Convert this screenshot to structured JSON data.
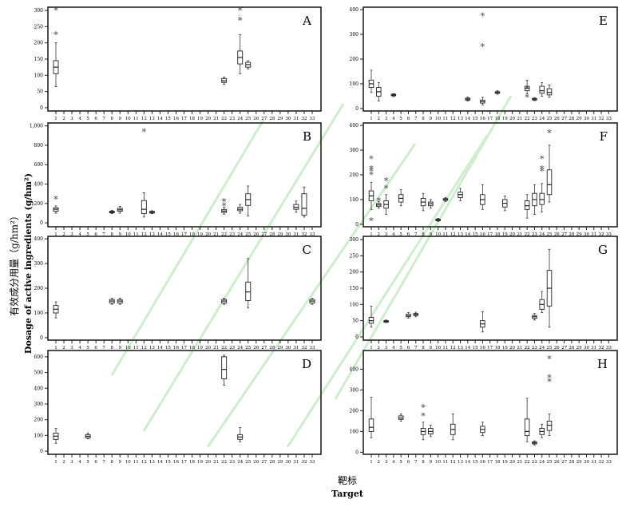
{
  "figure": {
    "ylabel_cn": "有效成分用量（g/hm²）",
    "ylabel_en": "Dosage of active ingredients (g/hm²)",
    "xlabel_cn": "靶标",
    "xlabel_en": "Target",
    "xticks": [
      "1",
      "2",
      "3",
      "4",
      "5",
      "6",
      "7",
      "8",
      "9",
      "10",
      "11",
      "12",
      "13",
      "14",
      "15",
      "16",
      "17",
      "18",
      "19",
      "20",
      "21",
      "22",
      "23",
      "24",
      "25",
      "26",
      "27",
      "28",
      "29",
      "30",
      "31",
      "32",
      "33"
    ]
  },
  "chart_data": [
    {
      "type": "box",
      "title": "A",
      "ylim": [
        -10,
        310
      ],
      "yticks": [
        "0",
        "50",
        "100",
        "150",
        "200",
        "250",
        "300"
      ],
      "yvals": [
        0,
        50,
        100,
        150,
        200,
        250,
        300
      ],
      "boxes": [
        {
          "x": 1,
          "min": 65,
          "q1": 105,
          "med": 125,
          "q3": 145,
          "max": 200
        },
        {
          "x": 22,
          "min": 72,
          "q1": 78,
          "med": 83,
          "q3": 90,
          "max": 95
        },
        {
          "x": 24,
          "min": 105,
          "q1": 135,
          "med": 155,
          "q3": 175,
          "max": 225
        },
        {
          "x": 25,
          "min": 120,
          "q1": 125,
          "med": 133,
          "q3": 140,
          "max": 145
        }
      ],
      "outliers": [
        {
          "x": 1,
          "y": 300
        },
        {
          "x": 1,
          "y": 225
        },
        {
          "x": 24,
          "y": 300
        },
        {
          "x": 24,
          "y": 270
        }
      ]
    },
    {
      "type": "box",
      "title": "E",
      "ylim": [
        -10,
        410
      ],
      "yticks": [
        "0",
        "100",
        "200",
        "300",
        "400"
      ],
      "yvals": [
        0,
        100,
        200,
        300,
        400
      ],
      "boxes": [
        {
          "x": 1,
          "min": 65,
          "q1": 85,
          "med": 100,
          "q3": 115,
          "max": 155
        },
        {
          "x": 2,
          "min": 30,
          "q1": 50,
          "med": 68,
          "q3": 85,
          "max": 105
        },
        {
          "x": 4,
          "min": 48,
          "q1": 52,
          "med": 55,
          "q3": 58,
          "max": 60
        },
        {
          "x": 14,
          "min": 30,
          "q1": 34,
          "med": 38,
          "q3": 42,
          "max": 46
        },
        {
          "x": 16,
          "min": 15,
          "q1": 22,
          "med": 28,
          "q3": 34,
          "max": 45
        },
        {
          "x": 18,
          "min": 58,
          "q1": 62,
          "med": 65,
          "q3": 68,
          "max": 72
        },
        {
          "x": 22,
          "min": 60,
          "q1": 72,
          "med": 82,
          "q3": 90,
          "max": 115
        },
        {
          "x": 23,
          "min": 32,
          "q1": 35,
          "med": 38,
          "q3": 41,
          "max": 44
        },
        {
          "x": 24,
          "min": 50,
          "q1": 62,
          "med": 72,
          "q3": 90,
          "max": 105
        },
        {
          "x": 25,
          "min": 45,
          "q1": 55,
          "med": 65,
          "q3": 80,
          "max": 95
        }
      ],
      "outliers": [
        {
          "x": 16,
          "y": 375
        },
        {
          "x": 16,
          "y": 250
        },
        {
          "x": 22,
          "y": 45
        },
        {
          "x": 22,
          "y": 80
        }
      ]
    },
    {
      "type": "box",
      "title": "B",
      "ylim": [
        -40,
        1030
      ],
      "yticks": [
        "0",
        "200",
        "400",
        "600",
        "800",
        "1,000"
      ],
      "yvals": [
        0,
        200,
        400,
        600,
        800,
        1000
      ],
      "boxes": [
        {
          "x": 1,
          "min": 100,
          "q1": 120,
          "med": 140,
          "q3": 155,
          "max": 175
        },
        {
          "x": 8,
          "min": 95,
          "q1": 105,
          "med": 112,
          "q3": 120,
          "max": 128
        },
        {
          "x": 9,
          "min": 100,
          "q1": 120,
          "med": 135,
          "q3": 150,
          "max": 170
        },
        {
          "x": 12,
          "min": 60,
          "q1": 95,
          "med": 140,
          "q3": 230,
          "max": 310
        },
        {
          "x": 13,
          "min": 95,
          "q1": 102,
          "med": 110,
          "q3": 118,
          "max": 125
        },
        {
          "x": 22,
          "min": 90,
          "q1": 108,
          "med": 122,
          "q3": 138,
          "max": 160
        },
        {
          "x": 24,
          "min": 100,
          "q1": 125,
          "med": 140,
          "q3": 160,
          "max": 190
        },
        {
          "x": 25,
          "min": 70,
          "q1": 180,
          "med": 240,
          "q3": 300,
          "max": 380
        },
        {
          "x": 31,
          "min": 110,
          "q1": 140,
          "med": 160,
          "q3": 190,
          "max": 225
        },
        {
          "x": 32,
          "min": 60,
          "q1": 80,
          "med": 150,
          "q3": 300,
          "max": 370
        }
      ],
      "outliers": [
        {
          "x": 1,
          "y": 245
        },
        {
          "x": 12,
          "y": 940
        },
        {
          "x": 22,
          "y": 220
        },
        {
          "x": 22,
          "y": 175
        }
      ]
    },
    {
      "type": "box",
      "title": "F",
      "ylim": [
        -10,
        410
      ],
      "yticks": [
        "0",
        "100",
        "200",
        "300",
        "400"
      ],
      "yvals": [
        0,
        100,
        200,
        300,
        400
      ],
      "boxes": [
        {
          "x": 1,
          "min": 60,
          "q1": 95,
          "med": 115,
          "q3": 135,
          "max": 170
        },
        {
          "x": 2,
          "min": 65,
          "q1": 72,
          "med": 78,
          "q3": 84,
          "max": 92
        },
        {
          "x": 3,
          "min": 40,
          "q1": 65,
          "med": 80,
          "q3": 95,
          "max": 120
        },
        {
          "x": 5,
          "min": 75,
          "q1": 90,
          "med": 105,
          "q3": 120,
          "max": 140
        },
        {
          "x": 8,
          "min": 55,
          "q1": 75,
          "med": 90,
          "q3": 105,
          "max": 125
        },
        {
          "x": 9,
          "min": 65,
          "q1": 75,
          "med": 83,
          "q3": 90,
          "max": 100
        },
        {
          "x": 10,
          "min": 12,
          "q1": 15,
          "med": 18,
          "q3": 21,
          "max": 24
        },
        {
          "x": 11,
          "min": 92,
          "q1": 97,
          "med": 100,
          "q3": 104,
          "max": 108
        },
        {
          "x": 13,
          "min": 95,
          "q1": 108,
          "med": 120,
          "q3": 130,
          "max": 145
        },
        {
          "x": 16,
          "min": 60,
          "q1": 80,
          "med": 100,
          "q3": 120,
          "max": 160
        },
        {
          "x": 19,
          "min": 55,
          "q1": 70,
          "med": 85,
          "q3": 100,
          "max": 115
        },
        {
          "x": 22,
          "min": 25,
          "q1": 60,
          "med": 75,
          "q3": 95,
          "max": 120
        },
        {
          "x": 23,
          "min": 40,
          "q1": 75,
          "med": 100,
          "q3": 125,
          "max": 160
        },
        {
          "x": 24,
          "min": 50,
          "q1": 80,
          "med": 100,
          "q3": 125,
          "max": 165
        },
        {
          "x": 25,
          "min": 90,
          "q1": 120,
          "med": 160,
          "q3": 220,
          "max": 320
        }
      ],
      "outliers": [
        {
          "x": 1,
          "y": 265
        },
        {
          "x": 1,
          "y": 225
        },
        {
          "x": 1,
          "y": 215
        },
        {
          "x": 1,
          "y": 200
        },
        {
          "x": 1,
          "y": 15
        },
        {
          "x": 2,
          "y": 95
        },
        {
          "x": 3,
          "y": 175
        },
        {
          "x": 3,
          "y": 145
        },
        {
          "x": 24,
          "y": 265
        },
        {
          "x": 24,
          "y": 225
        },
        {
          "x": 24,
          "y": 215
        },
        {
          "x": 25,
          "y": 370
        }
      ]
    },
    {
      "type": "box",
      "title": "C",
      "ylim": [
        -10,
        410
      ],
      "yticks": [
        "0",
        "100",
        "200",
        "300",
        "400"
      ],
      "yvals": [
        0,
        100,
        200,
        300,
        400
      ],
      "boxes": [
        {
          "x": 1,
          "min": 80,
          "q1": 100,
          "med": 115,
          "q3": 130,
          "max": 145
        },
        {
          "x": 8,
          "min": 135,
          "q1": 140,
          "med": 148,
          "q3": 154,
          "max": 160
        },
        {
          "x": 9,
          "min": 135,
          "q1": 140,
          "med": 148,
          "q3": 154,
          "max": 160
        },
        {
          "x": 22,
          "min": 135,
          "q1": 140,
          "med": 148,
          "q3": 154,
          "max": 160
        },
        {
          "x": 25,
          "min": 120,
          "q1": 150,
          "med": 185,
          "q3": 225,
          "max": 320
        },
        {
          "x": 33,
          "min": 135,
          "q1": 140,
          "med": 148,
          "q3": 154,
          "max": 160
        }
      ],
      "outliers": []
    },
    {
      "type": "box",
      "title": "G",
      "ylim": [
        -10,
        310
      ],
      "yticks": [
        "0",
        "50",
        "100",
        "150",
        "200",
        "250",
        "300"
      ],
      "yvals": [
        0,
        50,
        100,
        150,
        200,
        250,
        300
      ],
      "boxes": [
        {
          "x": 1,
          "min": 30,
          "q1": 42,
          "med": 50,
          "q3": 60,
          "max": 95
        },
        {
          "x": 3,
          "min": 44,
          "q1": 46,
          "med": 48,
          "q3": 50,
          "max": 52
        },
        {
          "x": 6,
          "min": 58,
          "q1": 62,
          "med": 65,
          "q3": 70,
          "max": 75
        },
        {
          "x": 7,
          "min": 62,
          "q1": 66,
          "med": 69,
          "q3": 72,
          "max": 76
        },
        {
          "x": 16,
          "min": 15,
          "q1": 30,
          "med": 40,
          "q3": 50,
          "max": 78
        },
        {
          "x": 23,
          "min": 52,
          "q1": 57,
          "med": 62,
          "q3": 66,
          "max": 72
        },
        {
          "x": 24,
          "min": 75,
          "q1": 85,
          "med": 100,
          "q3": 115,
          "max": 140
        },
        {
          "x": 25,
          "min": 30,
          "q1": 95,
          "med": 150,
          "q3": 205,
          "max": 270
        }
      ],
      "outliers": []
    },
    {
      "type": "box",
      "title": "D",
      "ylim": [
        -20,
        640
      ],
      "yticks": [
        "0",
        "100",
        "200",
        "300",
        "400",
        "500",
        "600"
      ],
      "yvals": [
        0,
        100,
        200,
        300,
        400,
        500,
        600
      ],
      "boxes": [
        {
          "x": 1,
          "min": 50,
          "q1": 75,
          "med": 95,
          "q3": 115,
          "max": 145
        },
        {
          "x": 5,
          "min": 78,
          "q1": 85,
          "med": 95,
          "q3": 105,
          "max": 115
        },
        {
          "x": 22,
          "min": 420,
          "q1": 460,
          "med": 520,
          "q3": 600,
          "max": 610
        },
        {
          "x": 24,
          "min": 60,
          "q1": 75,
          "med": 90,
          "q3": 105,
          "max": 150
        }
      ],
      "outliers": []
    },
    {
      "type": "box",
      "title": "H",
      "ylim": [
        -10,
        490
      ],
      "yticks": [
        "0",
        "100",
        "200",
        "300",
        "400"
      ],
      "yvals": [
        0,
        100,
        200,
        300,
        400
      ],
      "boxes": [
        {
          "x": 1,
          "min": 70,
          "q1": 100,
          "med": 120,
          "q3": 160,
          "max": 265
        },
        {
          "x": 5,
          "min": 150,
          "q1": 158,
          "med": 165,
          "q3": 175,
          "max": 185
        },
        {
          "x": 8,
          "min": 60,
          "q1": 85,
          "med": 100,
          "q3": 115,
          "max": 145
        },
        {
          "x": 9,
          "min": 75,
          "q1": 88,
          "med": 100,
          "q3": 115,
          "max": 130
        },
        {
          "x": 12,
          "min": 60,
          "q1": 85,
          "med": 110,
          "q3": 135,
          "max": 185
        },
        {
          "x": 16,
          "min": 80,
          "q1": 95,
          "med": 110,
          "q3": 125,
          "max": 145
        },
        {
          "x": 22,
          "min": 50,
          "q1": 80,
          "med": 100,
          "q3": 160,
          "max": 260
        },
        {
          "x": 23,
          "min": 35,
          "q1": 40,
          "med": 45,
          "q3": 50,
          "max": 55
        },
        {
          "x": 24,
          "min": 70,
          "q1": 85,
          "med": 100,
          "q3": 115,
          "max": 135
        },
        {
          "x": 25,
          "min": 80,
          "q1": 105,
          "med": 130,
          "q3": 150,
          "max": 185
        }
      ],
      "outliers": [
        {
          "x": 8,
          "y": 215
        },
        {
          "x": 8,
          "y": 175
        },
        {
          "x": 25,
          "y": 450
        },
        {
          "x": 25,
          "y": 360
        },
        {
          "x": 25,
          "y": 340
        }
      ]
    }
  ]
}
